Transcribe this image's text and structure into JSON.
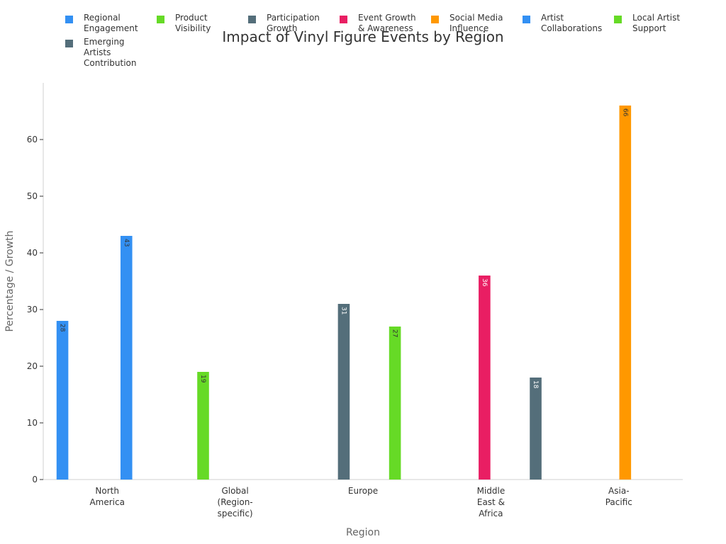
{
  "chart_data": {
    "type": "bar",
    "title": "Impact of Vinyl Figure Events by Region",
    "xlabel": "Region",
    "ylabel": "Percentage / Growth",
    "ylim": [
      0,
      70
    ],
    "yticks": [
      0,
      10,
      20,
      30,
      40,
      50,
      60
    ],
    "categories": [
      "North America",
      "Global (Region-specific)",
      "Europe",
      "Middle East & Africa",
      "Asia-Pacific"
    ],
    "category_labels": [
      [
        "North",
        "America"
      ],
      [
        "Global",
        "(Region-",
        "specific)"
      ],
      [
        "Europe"
      ],
      [
        "Middle",
        "East &",
        "Africa"
      ],
      [
        "Asia-",
        "Pacific"
      ]
    ],
    "series": [
      {
        "name": "Regional Engagement",
        "color": "#3390F3",
        "values": [
          28,
          null,
          null,
          null,
          null
        ]
      },
      {
        "name": "Product Visibility",
        "color": "#66DA26",
        "values": [
          null,
          19,
          null,
          null,
          null
        ]
      },
      {
        "name": "Participation Growth",
        "color": "#546E7A",
        "values": [
          null,
          null,
          31,
          null,
          null
        ]
      },
      {
        "name": "Event Growth & Awareness",
        "color": "#E91E63",
        "values": [
          null,
          null,
          null,
          36,
          null
        ]
      },
      {
        "name": "Social Media Influence",
        "color": "#FF9800",
        "values": [
          null,
          null,
          null,
          null,
          66
        ]
      },
      {
        "name": "Artist Collaborations",
        "color": "#3390F3",
        "values": [
          43,
          null,
          null,
          null,
          null
        ]
      },
      {
        "name": "Local Artist Support",
        "color": "#66DA26",
        "values": [
          null,
          null,
          27,
          null,
          null
        ]
      },
      {
        "name": "Emerging Artists Contribution",
        "color": "#546E7A",
        "values": [
          null,
          null,
          null,
          18,
          null
        ]
      }
    ],
    "legend_position": "top",
    "grid": false
  }
}
